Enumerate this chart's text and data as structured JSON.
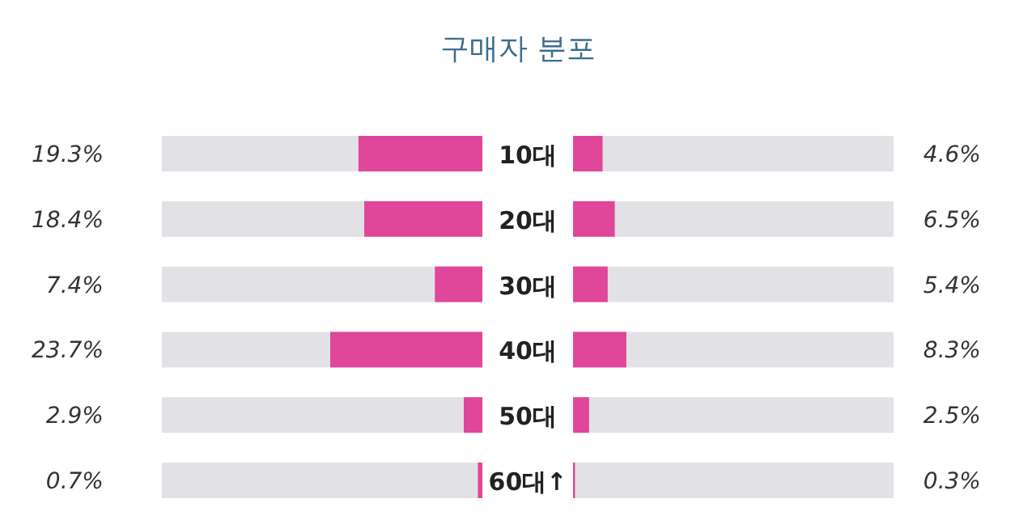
{
  "chart_data": [
    {
      "type": "bar",
      "orientation": "horizontal",
      "title": "구매자 분포",
      "categories": [
        "10대",
        "20대",
        "30대",
        "40대",
        "50대",
        "60대↑"
      ],
      "series": [
        {
          "color": "#e0469a",
          "values": [
            19.3,
            18.4,
            7.4,
            23.7,
            2.9,
            0.7
          ],
          "value_labels": [
            "19.3%",
            "18.4%",
            "7.4%",
            "23.7%",
            "2.9%",
            "0.7%"
          ]
        }
      ]
    },
    {
      "type": "bar",
      "orientation": "horizontal",
      "categories": [
        null,
        null,
        null,
        null,
        null,
        null
      ],
      "series": [
        {
          "color": "#e0469a",
          "values": [
            4.6,
            6.5,
            5.4,
            8.3,
            2.5,
            0.3
          ],
          "value_labels": [
            "4.6%",
            "6.5%",
            "5.4%",
            "8.3%",
            "2.5%",
            "0.3%"
          ]
        }
      ]
    }
  ]
}
